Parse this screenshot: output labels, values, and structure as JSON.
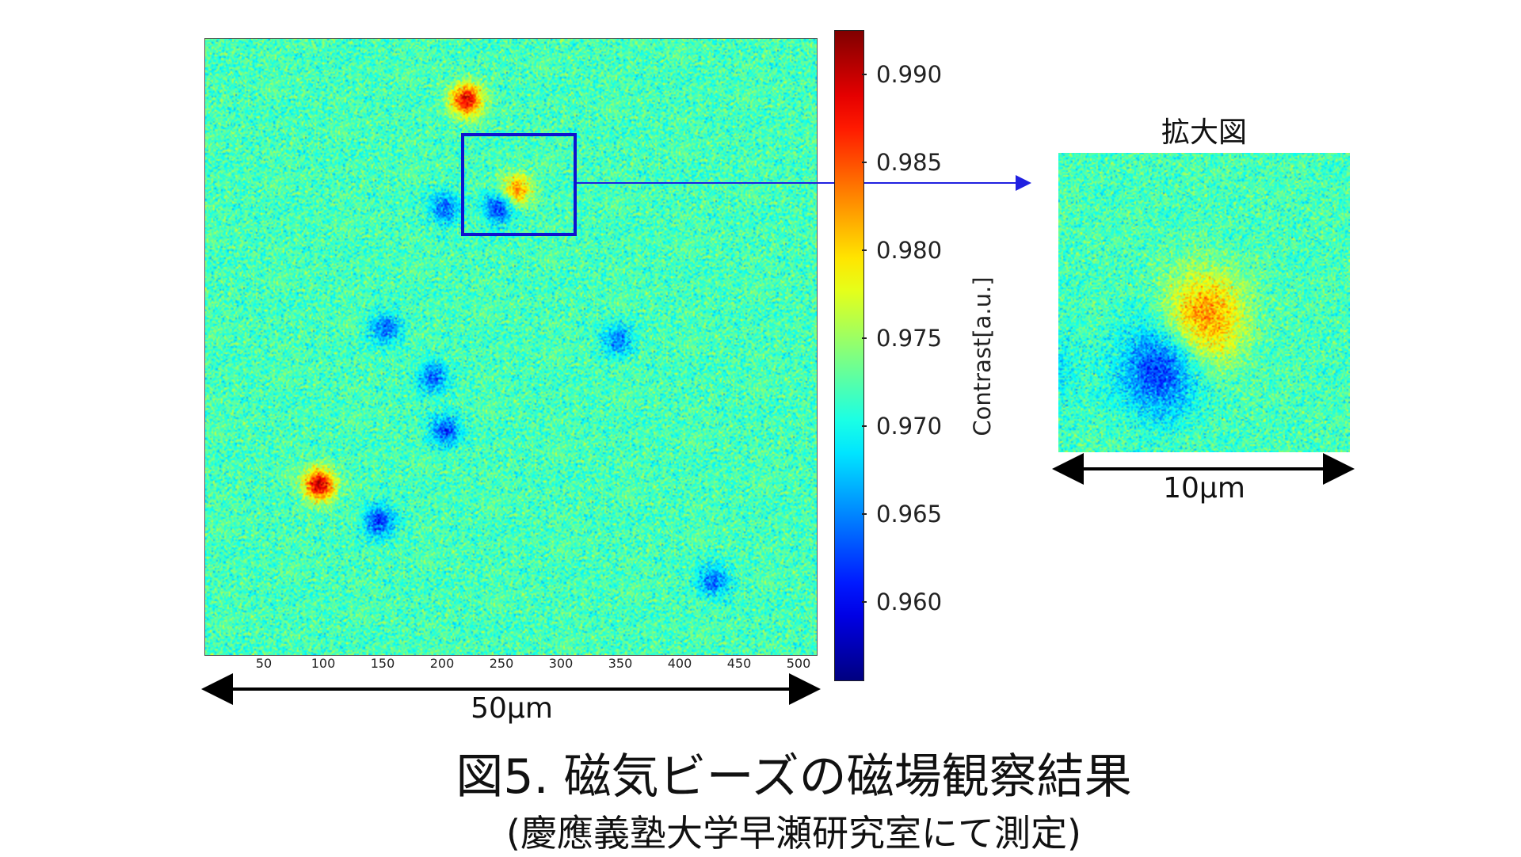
{
  "chart_data": {
    "type": "heatmap",
    "title": "図5. 磁気ビーズの磁場観察結果",
    "subtitle": "(慶應義塾大学早瀬研究室にて測定)",
    "x_tick_labels": [
      "50",
      "100",
      "150",
      "200",
      "250",
      "300",
      "350",
      "400",
      "450",
      "500"
    ],
    "xlim": [
      0,
      512
    ],
    "colorbar": {
      "label": "Contrast[a.u.]",
      "colormap": "jet",
      "range": [
        0.9555,
        0.9925
      ],
      "tick_labels": [
        "0.990",
        "0.985",
        "0.980",
        "0.975",
        "0.970",
        "0.965",
        "0.960"
      ],
      "tick_values": [
        0.99,
        0.985,
        0.98,
        0.975,
        0.97,
        0.965,
        0.96
      ]
    },
    "background_contrast_mean": 0.972,
    "features": [
      {
        "type": "bead",
        "x": 218,
        "y": 50,
        "peak": 0.989
      },
      {
        "type": "bead",
        "x": 260,
        "y": 125,
        "peak": 0.983
      },
      {
        "type": "bead",
        "x": 245,
        "y": 140,
        "peak": 0.962
      },
      {
        "type": "bead",
        "x": 200,
        "y": 140,
        "peak": 0.964
      },
      {
        "type": "bead",
        "x": 150,
        "y": 240,
        "peak": 0.964
      },
      {
        "type": "bead",
        "x": 345,
        "y": 250,
        "peak": 0.965
      },
      {
        "type": "bead",
        "x": 190,
        "y": 280,
        "peak": 0.964
      },
      {
        "type": "bead",
        "x": 200,
        "y": 325,
        "peak": 0.963
      },
      {
        "type": "bead",
        "x": 95,
        "y": 370,
        "peak": 0.99
      },
      {
        "type": "bead",
        "x": 145,
        "y": 400,
        "peak": 0.962
      },
      {
        "type": "bead",
        "x": 425,
        "y": 450,
        "peak": 0.964
      }
    ],
    "zoom_region": {
      "x0": 212,
      "x1": 308,
      "y0": 78,
      "y1": 164
    }
  },
  "labels": {
    "main_width": "50μm",
    "zoom_title": "拡大図",
    "zoom_width": "10μm"
  },
  "colors": {
    "roi_border": "#1010d0",
    "arrow": "#2020e0"
  }
}
